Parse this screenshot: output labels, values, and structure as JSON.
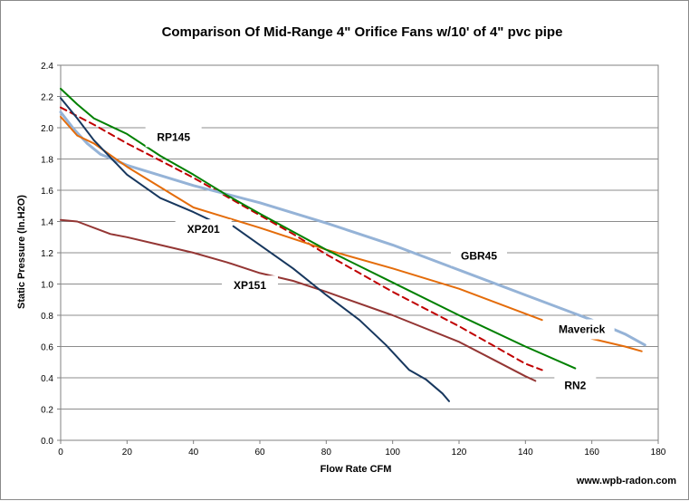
{
  "chart_data": {
    "type": "line",
    "title": "Comparison Of Mid-Range 4\" Orifice Fans  w/10' of 4\" pvc pipe",
    "xlabel": "Flow Rate  CFM",
    "ylabel": "Static Pressure  (In.H2O)",
    "xlim": [
      0,
      180
    ],
    "ylim": [
      0,
      2.4
    ],
    "x_ticks": [
      "0",
      "20",
      "40",
      "60",
      "80",
      "100",
      "120",
      "140",
      "160",
      "180"
    ],
    "y_ticks": [
      "0.0",
      "0.2",
      "0.4",
      "0.6",
      "0.8",
      "1.0",
      "1.2",
      "1.4",
      "1.6",
      "1.8",
      "2.0",
      "2.2",
      "2.4"
    ],
    "grid": true,
    "watermark": "www.wpb-radon.com",
    "series": [
      {
        "name": "RP145",
        "color": "#c00000",
        "dash": true,
        "x": [
          0,
          10,
          20,
          30,
          40,
          50,
          60,
          70,
          80,
          90,
          100,
          110,
          120,
          130,
          140,
          145
        ],
        "y": [
          2.13,
          2.02,
          1.9,
          1.79,
          1.68,
          1.56,
          1.44,
          1.32,
          1.19,
          1.07,
          0.95,
          0.84,
          0.73,
          0.61,
          0.49,
          0.45
        ]
      },
      {
        "name": "GBR45",
        "color": "#95b3d7",
        "dash": false,
        "x": [
          0,
          4,
          8,
          12,
          20,
          40,
          60,
          80,
          100,
          120,
          140,
          160,
          170,
          176
        ],
        "y": [
          2.1,
          1.99,
          1.9,
          1.83,
          1.76,
          1.63,
          1.52,
          1.39,
          1.25,
          1.09,
          0.93,
          0.77,
          0.68,
          0.61
        ]
      },
      {
        "name": "Maverick",
        "color": "#e46c0a",
        "dash": false,
        "x": [
          0,
          5,
          10,
          20,
          40,
          60,
          80,
          100,
          120,
          145
        ],
        "y": [
          2.07,
          1.95,
          1.9,
          1.75,
          1.49,
          1.36,
          1.22,
          1.1,
          0.97,
          0.77
        ]
      },
      {
        "name": "Maverick",
        "color": "#e46c0a",
        "dash": false,
        "x": [
          153,
          160,
          170,
          175
        ],
        "y": [
          0.7,
          0.65,
          0.6,
          0.57
        ]
      },
      {
        "name": "RN2",
        "color": "#008000",
        "dash": false,
        "x": [
          0,
          5,
          10,
          20,
          30,
          40,
          50,
          60,
          80,
          100,
          120,
          140,
          155
        ],
        "y": [
          2.25,
          2.15,
          2.06,
          1.96,
          1.82,
          1.7,
          1.57,
          1.45,
          1.22,
          1.01,
          0.8,
          0.6,
          0.46
        ]
      },
      {
        "name": "XP151",
        "color": "#943634",
        "dash": false,
        "x": [
          0,
          5,
          15,
          20,
          30,
          40,
          50,
          60,
          70,
          80,
          100,
          120,
          130,
          140,
          143
        ],
        "y": [
          1.41,
          1.4,
          1.32,
          1.3,
          1.25,
          1.2,
          1.14,
          1.07,
          1.02,
          0.95,
          0.8,
          0.63,
          0.52,
          0.41,
          0.38
        ]
      },
      {
        "name": "XP201",
        "color": "#17375e",
        "dash": false,
        "x": [
          0,
          5,
          10,
          20,
          30,
          40,
          45
        ],
        "y": [
          2.19,
          2.06,
          1.92,
          1.7,
          1.55,
          1.46,
          1.41
        ]
      },
      {
        "name": "XP201",
        "color": "#17375e",
        "dash": false,
        "x": [
          52,
          60,
          70,
          80,
          90,
          98,
          105,
          110,
          115,
          117
        ],
        "y": [
          1.37,
          1.25,
          1.1,
          0.93,
          0.77,
          0.61,
          0.45,
          0.39,
          0.3,
          0.25
        ]
      }
    ],
    "labels": [
      {
        "text": "RP145",
        "x": 34,
        "y": 1.94,
        "box_w": 62
      },
      {
        "text": "XP201",
        "x": 43,
        "y": 1.35,
        "box_w": 62
      },
      {
        "text": "GBR45",
        "x": 126,
        "y": 1.18,
        "box_w": 62
      },
      {
        "text": "XP151",
        "x": 57,
        "y": 0.99,
        "box_w": 62
      },
      {
        "text": "Maverick",
        "x": 157,
        "y": 0.71,
        "box_w": 72
      },
      {
        "text": "RN2",
        "x": 155,
        "y": 0.35,
        "box_w": 46
      }
    ]
  }
}
